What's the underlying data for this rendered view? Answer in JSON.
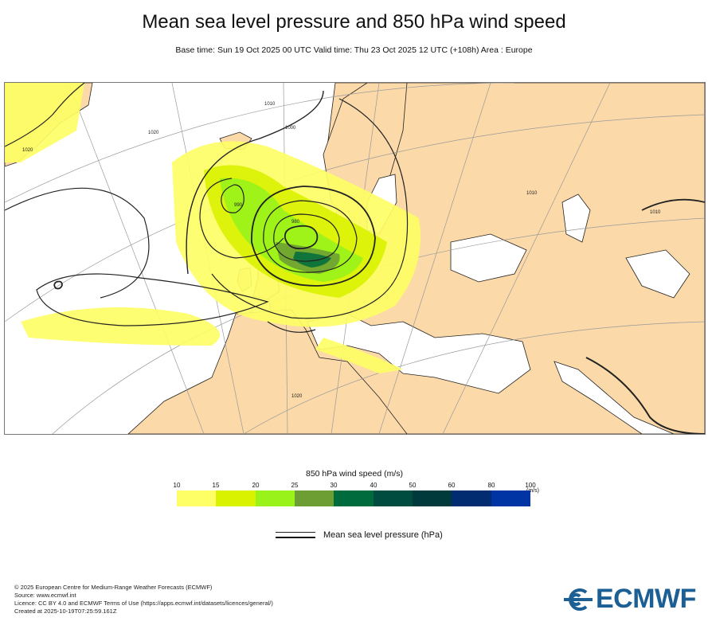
{
  "header": {
    "title": "Mean sea level pressure and 850 hPa wind speed",
    "subtitle": "Base time: Sun 19 Oct 2025 00 UTC Valid time: Thu 23 Oct 2025 12 UTC (+108h) Area : Europe"
  },
  "map": {
    "isobar_labels": [
      "1020",
      "1010",
      "1000",
      "990",
      "980",
      "1020",
      "1010",
      "1010",
      "1020"
    ],
    "colors": {
      "land": "#fbd9a8",
      "sea": "#ffffff",
      "coast": "#222222",
      "graticule": "#9a9a9a"
    }
  },
  "legend": {
    "title": "850 hPa wind speed (m/s)",
    "ticks": [
      "10",
      "15",
      "20",
      "25",
      "30",
      "40",
      "50",
      "60",
      "80",
      "100"
    ],
    "unit": "(m/s)",
    "colors": [
      "#fefe66",
      "#d9f200",
      "#99f31a",
      "#6d9e33",
      "#006b3c",
      "#004d40",
      "#003a3a",
      "#012c70",
      "#0034a5"
    ]
  },
  "msl_legend": {
    "label": "Mean sea level pressure (hPa)"
  },
  "footer": {
    "lines": [
      "© 2025 European Centre for Medium-Range Weather Forecasts (ECMWF)",
      "Source: www.ecmwf.int",
      "Licence: CC BY 4.0 and ECMWF Terms of Use (https://apps.ecmwf.int/datasets/licences/general/)",
      "Created at 2025-10-19T07:25:59.161Z"
    ]
  },
  "logo": {
    "text": "ECMWF",
    "icon": "ecmwf-logo-icon",
    "color": "#1c5f94"
  }
}
